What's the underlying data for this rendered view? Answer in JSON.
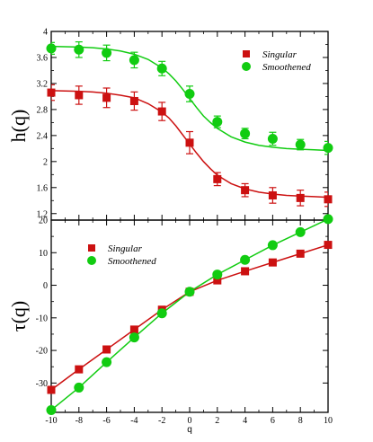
{
  "colors": {
    "singular": "#cc1111",
    "smoothened": "#11cc11",
    "axis": "#000000"
  },
  "chart_data": [
    {
      "type": "scatter",
      "title": "",
      "xlabel": "",
      "ylabel": "h(q)",
      "xlim": [
        -10,
        10
      ],
      "ylim": [
        1.1,
        4.0
      ],
      "xticks": [
        -10,
        -8,
        -6,
        -4,
        -2,
        0,
        2,
        4,
        6,
        8,
        10
      ],
      "yticks": [
        1.2,
        1.6,
        2.0,
        2.4,
        2.8,
        3.2,
        3.6,
        4.0
      ],
      "ytick_labels": [
        "1.2",
        "1.6",
        "2",
        "2.4",
        "2.8",
        "3.2",
        "3.6",
        "4"
      ],
      "legend": "top-right",
      "grid": false,
      "series": [
        {
          "name": "Singular",
          "marker": "square",
          "x": [
            -10,
            -8,
            -6,
            -4,
            -2,
            0,
            2,
            4,
            6,
            8,
            10
          ],
          "y": [
            3.06,
            3.02,
            2.98,
            2.93,
            2.77,
            2.29,
            1.73,
            1.56,
            1.48,
            1.44,
            1.42
          ],
          "err": [
            0.12,
            0.14,
            0.15,
            0.14,
            0.14,
            0.17,
            0.1,
            0.1,
            0.12,
            0.12,
            0.11
          ],
          "fit_x": [
            -10,
            -9,
            -8,
            -7,
            -6,
            -5,
            -4,
            -3,
            -2,
            -1.5,
            -1,
            -0.5,
            0,
            0.5,
            1,
            1.5,
            2,
            3,
            4,
            5,
            6,
            7,
            8,
            9,
            10
          ],
          "fit_y": [
            3.09,
            3.085,
            3.08,
            3.07,
            3.05,
            3.02,
            2.98,
            2.89,
            2.76,
            2.67,
            2.55,
            2.41,
            2.27,
            2.13,
            2.0,
            1.89,
            1.79,
            1.66,
            1.58,
            1.53,
            1.5,
            1.48,
            1.47,
            1.46,
            1.45
          ]
        },
        {
          "name": "Smoothened",
          "marker": "circle",
          "x": [
            -10,
            -8,
            -6,
            -4,
            -2,
            0,
            2,
            4,
            6,
            8,
            10
          ],
          "y": [
            3.74,
            3.72,
            3.67,
            3.56,
            3.43,
            3.04,
            2.61,
            2.43,
            2.35,
            2.26,
            2.21
          ],
          "err": [
            0.09,
            0.12,
            0.12,
            0.12,
            0.11,
            0.12,
            0.09,
            0.08,
            0.1,
            0.08,
            0.1
          ],
          "fit_x": [
            -10,
            -9,
            -8,
            -7,
            -6,
            -5,
            -4,
            -3,
            -2,
            -1.5,
            -1,
            -0.5,
            0,
            0.5,
            1,
            1.5,
            2,
            3,
            4,
            5,
            6,
            7,
            8,
            9,
            10
          ],
          "fit_y": [
            3.77,
            3.765,
            3.76,
            3.75,
            3.73,
            3.7,
            3.65,
            3.57,
            3.44,
            3.35,
            3.24,
            3.11,
            2.97,
            2.83,
            2.7,
            2.6,
            2.51,
            2.38,
            2.3,
            2.25,
            2.22,
            2.2,
            2.19,
            2.18,
            2.17
          ]
        }
      ]
    },
    {
      "type": "line",
      "title": "",
      "xlabel": "q",
      "ylabel": "τ(q)",
      "xlim": [
        -10,
        10
      ],
      "ylim": [
        -39,
        20
      ],
      "xticks": [
        -10,
        -8,
        -6,
        -4,
        -2,
        0,
        2,
        4,
        6,
        8,
        10
      ],
      "yticks": [
        -30,
        -20,
        -10,
        0,
        10,
        20
      ],
      "legend": "top-left",
      "grid": false,
      "series": [
        {
          "name": "Singular",
          "marker": "square",
          "x": [
            -10,
            -8,
            -6,
            -4,
            -2,
            0,
            2,
            4,
            6,
            8,
            10
          ],
          "y": [
            -32.1,
            -25.8,
            -19.7,
            -13.6,
            -7.5,
            -2.0,
            1.5,
            4.3,
            7.0,
            9.7,
            12.4
          ],
          "fit_x": [
            -10,
            -8,
            -6,
            -4,
            -2,
            0,
            2,
            4,
            6,
            8,
            10
          ],
          "fit_y": [
            -32.1,
            -25.8,
            -19.7,
            -13.6,
            -7.5,
            -2.0,
            1.5,
            4.3,
            7.0,
            9.7,
            12.4
          ]
        },
        {
          "name": "Smoothened",
          "marker": "circle",
          "x": [
            -10,
            -8,
            -6,
            -4,
            -2,
            0,
            2,
            4,
            6,
            8,
            10
          ],
          "y": [
            -38.3,
            -31.4,
            -23.6,
            -16.0,
            -8.6,
            -2.0,
            3.3,
            7.8,
            12.3,
            16.3,
            20.3
          ],
          "fit_x": [
            -10,
            -8,
            -6,
            -4,
            -2,
            0,
            2,
            4,
            6,
            8,
            10
          ],
          "fit_y": [
            -38.3,
            -31.4,
            -23.6,
            -16.0,
            -8.6,
            -2.0,
            3.3,
            7.8,
            12.3,
            16.3,
            20.3
          ]
        }
      ]
    }
  ]
}
